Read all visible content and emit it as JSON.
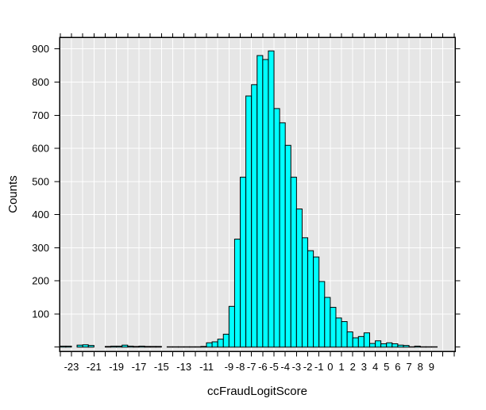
{
  "figure": {
    "background": "#ffffff"
  },
  "chart_data": {
    "type": "bar",
    "subtype": "histogram",
    "title": "",
    "xlabel": "ccFraudLogitScore",
    "ylabel": "Counts",
    "bin_width": 0.5,
    "xlim": [
      -24.1,
      11.1
    ],
    "ylim": [
      0,
      935
    ],
    "grid": true,
    "legend": "none",
    "panel_bg": "#e6e6e6",
    "grid_color": "#ffffff",
    "bar_fill": "#00ffff",
    "bar_stroke": "#000000",
    "axis_color": "#000000",
    "x_tick_step": 1,
    "x_ticks_labeled": [
      -23,
      -21,
      -19,
      -17,
      -15,
      -13,
      -11,
      -9,
      -8,
      -7,
      -6,
      -5,
      -4,
      -3,
      -2,
      -1,
      0,
      1,
      2,
      3,
      4,
      5,
      6,
      7,
      8,
      9
    ],
    "y_ticks_labeled": [
      100,
      200,
      300,
      400,
      500,
      600,
      700,
      800,
      900
    ],
    "bins": [
      [
        -24,
        3
      ],
      [
        -23.5,
        3
      ],
      [
        -22.5,
        6
      ],
      [
        -22,
        7
      ],
      [
        -21.5,
        5
      ],
      [
        -20,
        2
      ],
      [
        -19.5,
        3
      ],
      [
        -19,
        3
      ],
      [
        -18.5,
        6
      ],
      [
        -18,
        3
      ],
      [
        -17.5,
        2
      ],
      [
        -17,
        3
      ],
      [
        -16.5,
        2
      ],
      [
        -16,
        2
      ],
      [
        -15.5,
        2
      ],
      [
        -14.5,
        1
      ],
      [
        -14,
        1
      ],
      [
        -13.5,
        1
      ],
      [
        -13,
        1
      ],
      [
        -12.5,
        1
      ],
      [
        -12,
        1
      ],
      [
        -11.5,
        2
      ],
      [
        -11,
        13
      ],
      [
        -10.5,
        16
      ],
      [
        -10,
        24
      ],
      [
        -9.5,
        39
      ],
      [
        -9,
        123
      ],
      [
        -8.5,
        326
      ],
      [
        -8,
        513
      ],
      [
        -7.5,
        758
      ],
      [
        -7,
        792
      ],
      [
        -6.5,
        880
      ],
      [
        -6,
        868
      ],
      [
        -5.5,
        894
      ],
      [
        -5,
        720
      ],
      [
        -4.5,
        677
      ],
      [
        -4,
        609
      ],
      [
        -3.5,
        513
      ],
      [
        -3,
        417
      ],
      [
        -2.5,
        330
      ],
      [
        -2,
        291
      ],
      [
        -1.5,
        272
      ],
      [
        -1,
        198
      ],
      [
        -0.5,
        150
      ],
      [
        0,
        120
      ],
      [
        0.5,
        88
      ],
      [
        1,
        77
      ],
      [
        1.5,
        46
      ],
      [
        2,
        28
      ],
      [
        2.5,
        32
      ],
      [
        3,
        43
      ],
      [
        3.5,
        11
      ],
      [
        4,
        19
      ],
      [
        4.5,
        10
      ],
      [
        5,
        13
      ],
      [
        5.5,
        10
      ],
      [
        6,
        6
      ],
      [
        6.5,
        5
      ],
      [
        7,
        1
      ],
      [
        7.5,
        3
      ],
      [
        8,
        1
      ],
      [
        8.5,
        1
      ],
      [
        9,
        1
      ]
    ]
  }
}
